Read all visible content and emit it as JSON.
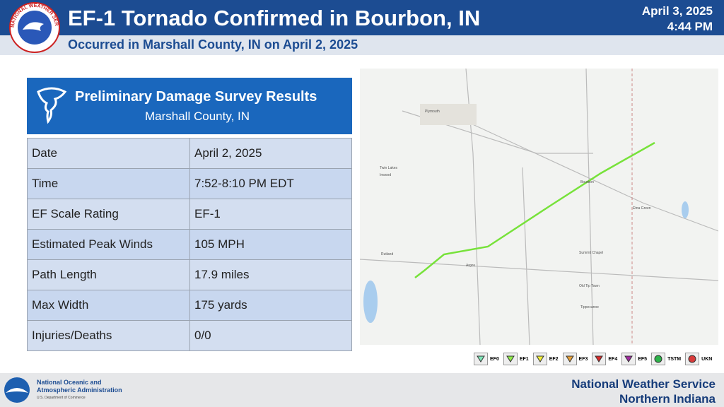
{
  "header": {
    "title": "EF-1 Tornado Confirmed in Bourbon, IN",
    "subtitle": "Occurred in Marshall County, IN on April 2, 2025",
    "date": "April 3, 2025",
    "time": "4:44 PM",
    "logo_text": "NATIONAL WEATHER SERVICE"
  },
  "panel": {
    "title": "Preliminary Damage Survey Results",
    "subtitle": "Marshall County, IN"
  },
  "table": {
    "rows": [
      [
        "Date",
        "April 2, 2025"
      ],
      [
        "Time",
        "7:52-8:10 PM EDT"
      ],
      [
        "EF Scale Rating",
        "EF-1"
      ],
      [
        "Estimated Peak Winds",
        "105 MPH"
      ],
      [
        "Path Length",
        "17.9 miles"
      ],
      [
        "Max Width",
        "175 yards"
      ],
      [
        "Injuries/Deaths",
        "0/0"
      ]
    ]
  },
  "map": {
    "labels": [
      "Plymouth",
      "Twin Lakes",
      "Inwood",
      "Bourbon",
      "Etna Green",
      "Argos",
      "Rutland",
      "Summit Chapel",
      "Old Tip Town",
      "Tippecanoe"
    ]
  },
  "legend": [
    "EF0",
    "EF1",
    "EF2",
    "EF3",
    "EF4",
    "EF5",
    "TSTM",
    "UKN"
  ],
  "footer": {
    "noaa_line1": "National Oceanic and",
    "noaa_line2": "Atmospheric Administration",
    "noaa_line3": "U.S. Department of Commerce",
    "nws_line1": "National Weather Service",
    "nws_line2": "Northern Indiana"
  }
}
